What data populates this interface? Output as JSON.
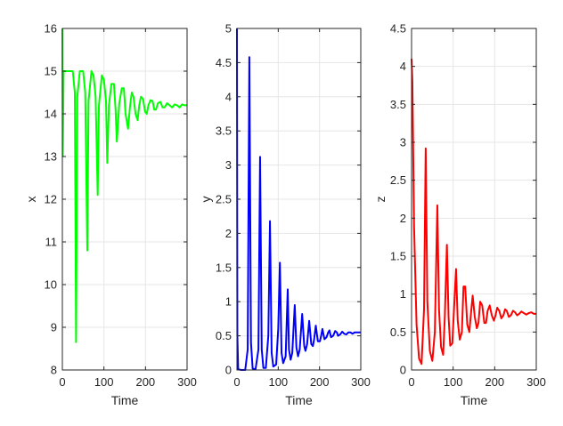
{
  "chart_data": [
    {
      "type": "line",
      "xlabel": "Time",
      "ylabel": "x",
      "xlim": [
        0,
        300
      ],
      "ylim": [
        8,
        16
      ],
      "xticks": [
        "0",
        "100",
        "200",
        "300"
      ],
      "yticks": [
        "8",
        "9",
        "10",
        "11",
        "12",
        "13",
        "14",
        "15",
        "16"
      ],
      "grid": true,
      "color": "#00ff00",
      "series": [
        {
          "x": [
            0,
            1,
            3,
            6,
            10,
            25,
            30,
            33,
            36,
            42,
            50,
            55,
            60,
            63,
            70,
            75,
            80,
            85,
            88,
            95,
            100,
            105,
            108,
            112,
            118,
            124,
            128,
            131,
            137,
            143,
            148,
            152,
            158,
            163,
            167,
            171,
            176,
            181,
            185,
            189,
            194,
            199,
            203,
            207,
            212,
            217,
            221,
            225,
            230,
            236,
            241,
            246,
            252,
            258,
            264,
            270,
            276,
            282,
            288,
            294,
            300
          ],
          "values": [
            16,
            13,
            15,
            15,
            15,
            15,
            14.5,
            8.65,
            14.4,
            15,
            15,
            14.5,
            10.8,
            14.3,
            15,
            14.9,
            14.4,
            12.1,
            14.2,
            14.9,
            14.8,
            14.3,
            12.85,
            14.2,
            14.7,
            14.7,
            14.1,
            13.35,
            14.25,
            14.6,
            14.6,
            14.0,
            13.65,
            14.2,
            14.5,
            14.4,
            14.0,
            13.85,
            14.2,
            14.4,
            14.35,
            14.05,
            14.0,
            14.2,
            14.32,
            14.3,
            14.1,
            14.1,
            14.25,
            14.28,
            14.15,
            14.15,
            14.25,
            14.2,
            14.15,
            14.22,
            14.2,
            14.15,
            14.22,
            14.2,
            14.2
          ]
        }
      ]
    },
    {
      "type": "line",
      "xlabel": "Time",
      "ylabel": "y",
      "xlim": [
        0,
        300
      ],
      "ylim": [
        0,
        5
      ],
      "xticks": [
        "0",
        "100",
        "200",
        "300"
      ],
      "yticks": [
        "0",
        "0.5",
        "1",
        "1.5",
        "2",
        "2.5",
        "3",
        "3.5",
        "4",
        "4.5",
        "5"
      ],
      "grid": true,
      "color": "#0000ff",
      "series": [
        {
          "x": [
            0,
            1,
            3,
            10,
            20,
            26,
            30,
            34,
            38,
            45,
            52,
            56,
            60,
            64,
            70,
            76,
            80,
            84,
            88,
            95,
            100,
            104,
            108,
            112,
            118,
            123,
            126,
            130,
            134,
            140,
            144,
            148,
            152,
            158,
            163,
            166,
            170,
            175,
            180,
            184,
            187,
            191,
            196,
            201,
            204,
            207,
            212,
            217,
            221,
            224,
            228,
            233,
            238,
            242,
            245,
            250,
            255,
            260,
            265,
            270,
            275,
            280,
            285,
            290,
            295,
            300
          ],
          "values": [
            5,
            0.5,
            0.01,
            0.0,
            0.0,
            0.3,
            4.58,
            0.4,
            0.02,
            0.01,
            0.3,
            3.12,
            0.3,
            0.03,
            0.03,
            0.5,
            2.18,
            0.25,
            0.05,
            0.08,
            0.6,
            1.57,
            0.25,
            0.1,
            0.2,
            1.18,
            0.3,
            0.15,
            0.25,
            0.95,
            0.33,
            0.2,
            0.3,
            0.82,
            0.35,
            0.28,
            0.38,
            0.72,
            0.38,
            0.35,
            0.45,
            0.65,
            0.42,
            0.42,
            0.5,
            0.6,
            0.45,
            0.48,
            0.55,
            0.58,
            0.48,
            0.5,
            0.57,
            0.55,
            0.5,
            0.52,
            0.56,
            0.53,
            0.52,
            0.55,
            0.55,
            0.53,
            0.55,
            0.55,
            0.55,
            0.55
          ]
        }
      ]
    },
    {
      "type": "line",
      "xlabel": "Time",
      "ylabel": "z",
      "xlim": [
        0,
        300
      ],
      "ylim": [
        0,
        4.5
      ],
      "xticks": [
        "0",
        "100",
        "200",
        "300"
      ],
      "yticks": [
        "0",
        "0.5",
        "1",
        "1.5",
        "2",
        "2.5",
        "3",
        "3.5",
        "4",
        "4.5"
      ],
      "grid": true,
      "color": "#ff0000",
      "series": [
        {
          "x": [
            0,
            2,
            6,
            12,
            18,
            24,
            30,
            34,
            38,
            44,
            50,
            56,
            62,
            66,
            71,
            76,
            80,
            85,
            89,
            93,
            98,
            103,
            107,
            111,
            116,
            121,
            125,
            129,
            134,
            139,
            143,
            147,
            152,
            157,
            161,
            165,
            170,
            175,
            179,
            183,
            188,
            193,
            198,
            202,
            206,
            211,
            216,
            221,
            225,
            229,
            234,
            239,
            244,
            249,
            254,
            259,
            264,
            270,
            276,
            282,
            288,
            294,
            300
          ],
          "values": [
            4.1,
            3.8,
            1.9,
            0.6,
            0.15,
            0.08,
            0.8,
            2.92,
            0.9,
            0.25,
            0.12,
            0.5,
            2.17,
            0.8,
            0.3,
            0.2,
            0.7,
            1.65,
            0.7,
            0.32,
            0.35,
            0.9,
            1.33,
            0.65,
            0.4,
            0.5,
            1.1,
            1.1,
            0.6,
            0.5,
            0.75,
            0.98,
            0.7,
            0.55,
            0.62,
            0.9,
            0.85,
            0.62,
            0.62,
            0.78,
            0.85,
            0.72,
            0.65,
            0.72,
            0.82,
            0.78,
            0.68,
            0.72,
            0.8,
            0.78,
            0.7,
            0.72,
            0.78,
            0.76,
            0.72,
            0.74,
            0.77,
            0.75,
            0.73,
            0.75,
            0.76,
            0.74,
            0.74
          ]
        }
      ]
    }
  ]
}
